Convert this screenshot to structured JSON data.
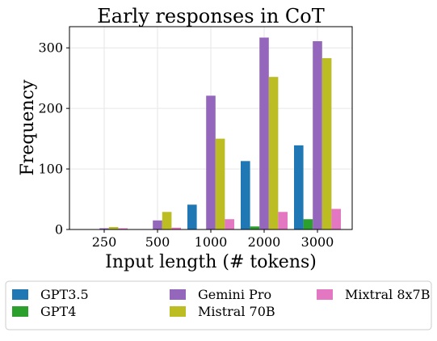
{
  "colors": {
    "GPT3.5": "#1f77b4",
    "GPT4": "#2ca02c",
    "Gemini Pro": "#9467bd",
    "Mistral 70B": "#bcbd22",
    "Mixtral 8x7B": "#e377c2"
  },
  "chart_data": {
    "type": "bar",
    "title": "Early responses in CoT",
    "xlabel": "Input length (# tokens)",
    "ylabel": "Frequency",
    "categories": [
      "250",
      "500",
      "1000",
      "2000",
      "3000"
    ],
    "ylim": [
      0,
      335
    ],
    "yticks": [
      0,
      100,
      200,
      300
    ],
    "grid": true,
    "legend_position": "bottom",
    "series": [
      {
        "name": "GPT3.5",
        "values": [
          0,
          0,
          41,
          113,
          139
        ]
      },
      {
        "name": "GPT4",
        "values": [
          0,
          0,
          0,
          5,
          17
        ]
      },
      {
        "name": "Gemini Pro",
        "values": [
          2,
          15,
          221,
          317,
          311
        ]
      },
      {
        "name": "Mistral 70B",
        "values": [
          4,
          29,
          150,
          252,
          283
        ]
      },
      {
        "name": "Mixtral 8x7B",
        "values": [
          2,
          3,
          17,
          29,
          34
        ]
      }
    ]
  }
}
